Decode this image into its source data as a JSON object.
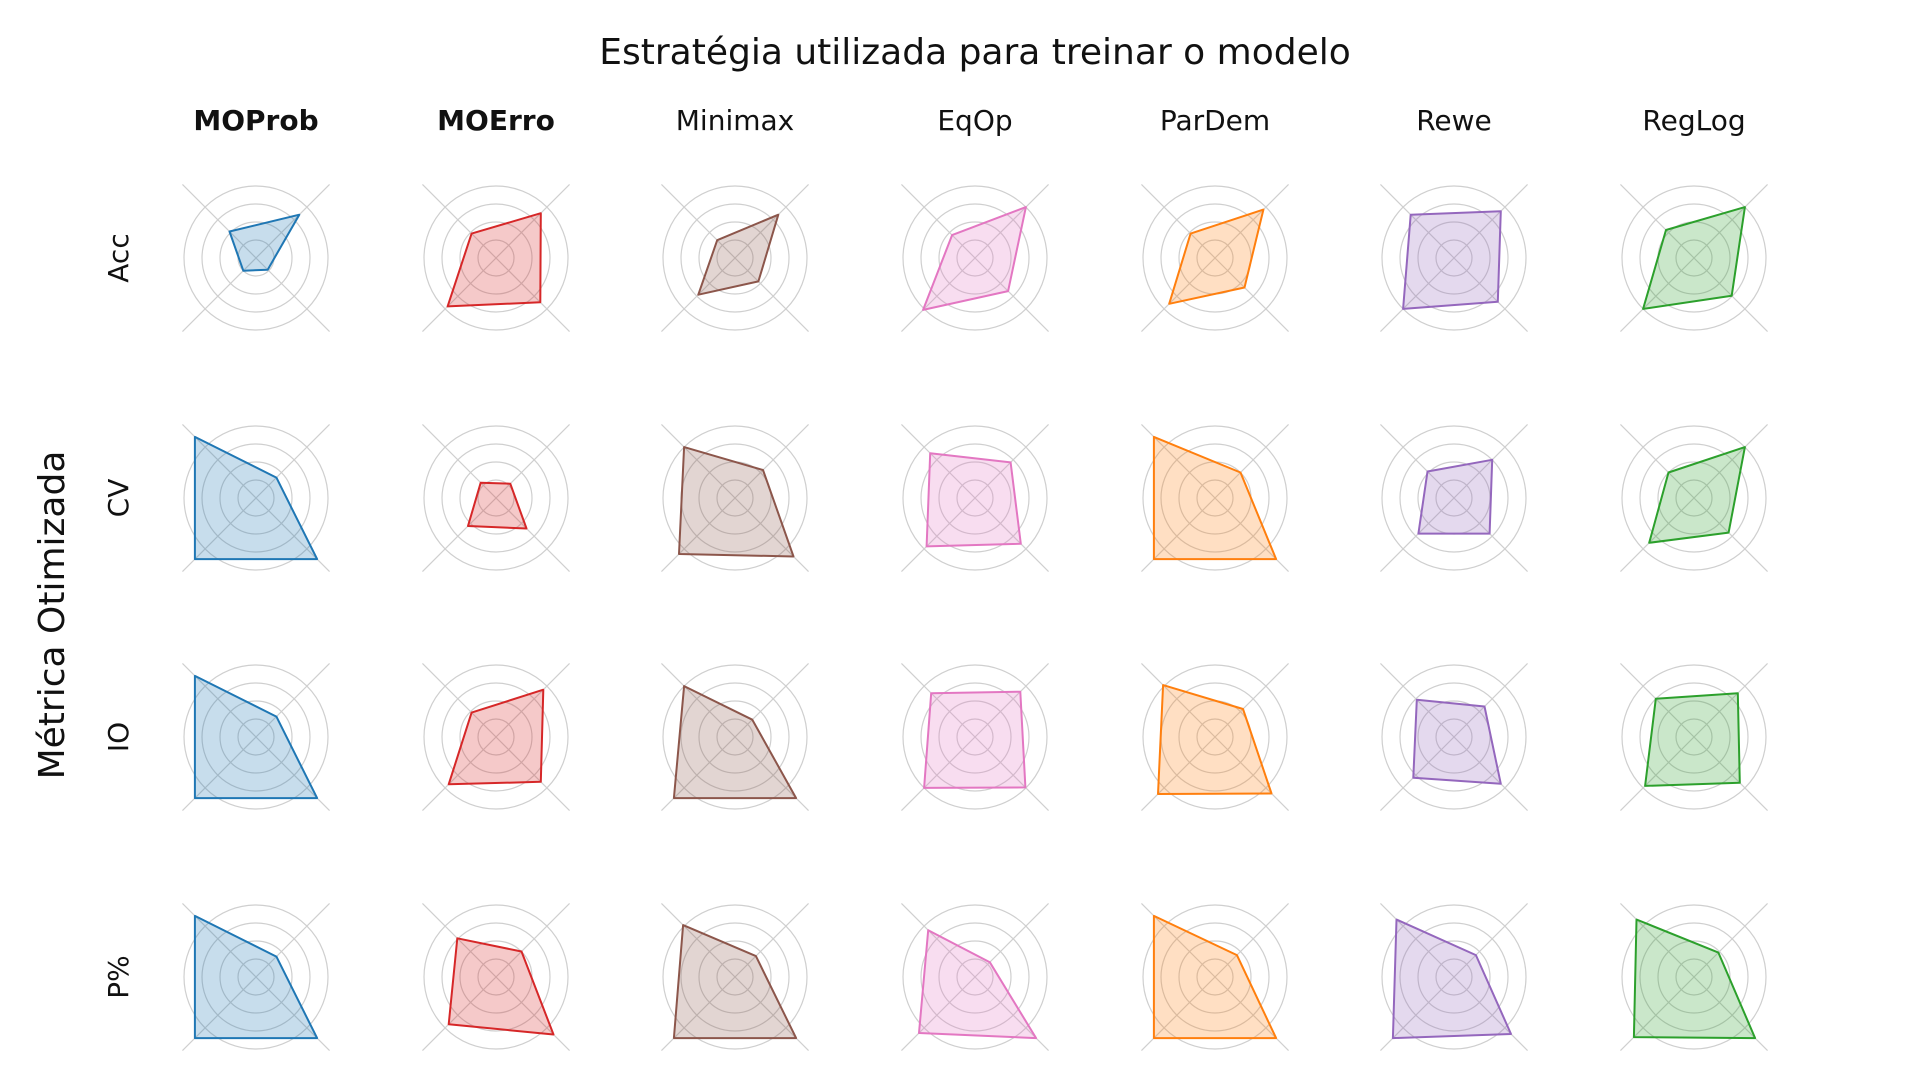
{
  "chart_data": {
    "type": "radar",
    "title": "Estratégia utilizada para treinar o modelo",
    "ylabel": "Métrica Otimizada",
    "axes_per_radar": 4,
    "radial_range": [
      0,
      1
    ],
    "grid_levels": 4,
    "grid": true,
    "columns": [
      {
        "name": "MOProb",
        "bold": true,
        "color": "#1f77b4"
      },
      {
        "name": "MOErro",
        "bold": true,
        "color": "#d62728"
      },
      {
        "name": "Minimax",
        "bold": false,
        "color": "#8c564b"
      },
      {
        "name": "EqOp",
        "bold": false,
        "color": "#e377c2"
      },
      {
        "name": "ParDem",
        "bold": false,
        "color": "#ff7f0e"
      },
      {
        "name": "Rewe",
        "bold": false,
        "color": "#9467bd"
      },
      {
        "name": "RegLog",
        "bold": false,
        "color": "#2ca02c"
      }
    ],
    "rows": [
      "Acc",
      "CV",
      "IO",
      "P%"
    ],
    "axis_order": [
      "upper-right",
      "upper-left",
      "lower-left",
      "lower-right"
    ],
    "values": [
      [
        [
          0.85,
          0.52,
          0.25,
          0.23
        ],
        [
          0.88,
          0.48,
          0.95,
          0.87
        ],
        [
          0.85,
          0.35,
          0.72,
          0.46
        ],
        [
          1.0,
          0.45,
          1.02,
          0.65
        ],
        [
          0.95,
          0.48,
          0.9,
          0.58
        ],
        [
          0.92,
          0.85,
          1.0,
          0.86
        ],
        [
          1.0,
          0.55,
          1.0,
          0.74
        ]
      ],
      [
        [
          0.4,
          1.2,
          1.2,
          1.2
        ],
        [
          0.28,
          0.3,
          0.55,
          0.6
        ],
        [
          0.55,
          1.0,
          1.1,
          1.15
        ],
        [
          0.7,
          0.88,
          0.95,
          0.9
        ],
        [
          0.5,
          1.2,
          1.2,
          1.2
        ],
        [
          0.75,
          0.52,
          0.7,
          0.7
        ],
        [
          1.0,
          0.5,
          0.88,
          0.68
        ]
      ],
      [
        [
          0.4,
          1.2,
          1.2,
          1.2
        ],
        [
          0.93,
          0.48,
          0.93,
          0.88
        ],
        [
          0.34,
          1.0,
          1.2,
          1.2
        ],
        [
          0.89,
          0.86,
          1.0,
          0.99
        ],
        [
          0.55,
          1.02,
          1.12,
          1.11
        ],
        [
          0.6,
          0.73,
          0.8,
          0.92
        ],
        [
          0.86,
          0.75,
          0.96,
          0.9
        ]
      ],
      [
        [
          0.4,
          1.2,
          1.2,
          1.2
        ],
        [
          0.5,
          0.76,
          0.93,
          1.13
        ],
        [
          0.41,
          1.02,
          1.2,
          1.2
        ],
        [
          0.29,
          0.92,
          1.1,
          1.2
        ],
        [
          0.43,
          1.2,
          1.2,
          1.2
        ],
        [
          0.43,
          1.13,
          1.2,
          1.12
        ],
        [
          0.48,
          1.13,
          1.18,
          1.2
        ]
      ]
    ]
  }
}
